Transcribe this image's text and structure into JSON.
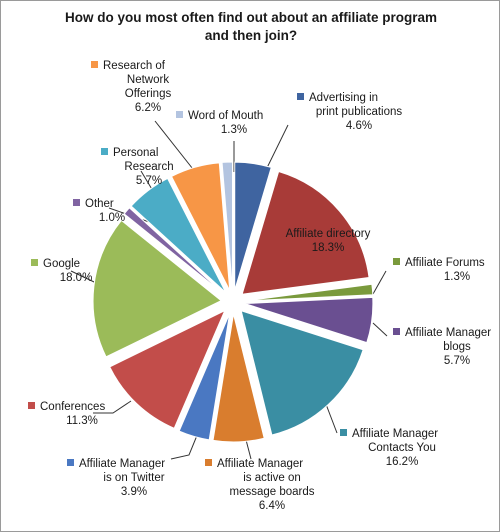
{
  "chart_data": {
    "type": "pie",
    "title": "How do you most often find out about an affiliate program and then join?",
    "title_lines": [
      "How do you most often find out about an affiliate program",
      "and then join?"
    ],
    "exploded": true,
    "slices": [
      {
        "label": "Advertising in print publications",
        "lines": [
          "Advertising in",
          "print publications"
        ],
        "value": 4.6,
        "display": "4.6%",
        "color": "#3f64a0"
      },
      {
        "label": "Affiliate directory",
        "lines": [
          "Affiliate directory"
        ],
        "value": 18.3,
        "display": "18.3%",
        "color": "#a83b38"
      },
      {
        "label": "Affiliate Forums",
        "lines": [
          "Affiliate Forums"
        ],
        "value": 1.3,
        "display": "1.3%",
        "color": "#7a9a3c"
      },
      {
        "label": "Affiliate Manager blogs",
        "lines": [
          "Affiliate Manager",
          "blogs"
        ],
        "value": 5.7,
        "display": "5.7%",
        "color": "#6a4f91"
      },
      {
        "label": "Affiliate Manager Contacts You",
        "lines": [
          "Affiliate Manager",
          "Contacts You"
        ],
        "value": 16.2,
        "display": "16.2%",
        "color": "#3a8ea3"
      },
      {
        "label": "Affiliate Manager is active on message boards",
        "lines": [
          "Affiliate Manager",
          "is active on",
          "message boards"
        ],
        "value": 6.4,
        "display": "6.4%",
        "color": "#d97d2e"
      },
      {
        "label": "Affiliate Manager is on Twitter",
        "lines": [
          "Affiliate Manager",
          "is on Twitter"
        ],
        "value": 3.9,
        "display": "3.9%",
        "color": "#4a78c2"
      },
      {
        "label": "Conferences",
        "lines": [
          "Conferences"
        ],
        "value": 11.3,
        "display": "11.3%",
        "color": "#c24d4a"
      },
      {
        "label": "Google",
        "lines": [
          "Google"
        ],
        "value": 18.0,
        "display": "18.0%",
        "color": "#9bbb59"
      },
      {
        "label": "Other",
        "lines": [
          "Other"
        ],
        "value": 1.0,
        "display": "1.0%",
        "color": "#8064a2"
      },
      {
        "label": "Personal Research",
        "lines": [
          "Personal",
          "Research"
        ],
        "value": 5.7,
        "display": "5.7%",
        "color": "#4bacc6"
      },
      {
        "label": "Research of Network Offerings",
        "lines": [
          "Research of",
          "Network",
          "Offerings"
        ],
        "value": 6.2,
        "display": "6.2%",
        "color": "#f79646"
      },
      {
        "label": "Word of Mouth",
        "lines": [
          "Word of Mouth"
        ],
        "value": 1.3,
        "display": "1.3%",
        "color": "#b3c4e0"
      }
    ]
  }
}
